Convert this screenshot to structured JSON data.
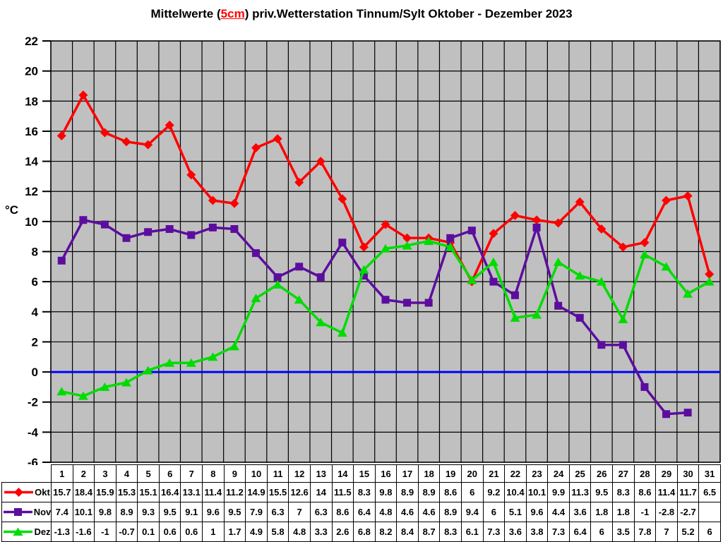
{
  "title": {
    "prefix": "Mittelwerte (",
    "highlight": "5cm",
    "suffix": ") priv.Wetterstation Tinnum/Sylt Oktober - Dezember 2023",
    "highlight_color": "#ff0000"
  },
  "y_axis": {
    "unit": "°C",
    "ticks": [
      22,
      20,
      18,
      16,
      14,
      12,
      10,
      8,
      6,
      4,
      2,
      0,
      -2,
      -4,
      -6
    ]
  },
  "colors": {
    "plot_bg": "#c0c0c0",
    "grid": "#000000",
    "axis": "#000000",
    "zero_line": "#0000ff",
    "okt": "#ff0000",
    "nov": "#5c0d9e",
    "dez": "#00dc00"
  },
  "chart_data": {
    "type": "line",
    "title": "Mittelwerte (5cm) priv.Wetterstation Tinnum/Sylt Oktober - Dezember 2023",
    "xlabel": "",
    "ylabel": "°C",
    "ylim": [
      -6,
      22
    ],
    "ystep": 2,
    "grid": true,
    "legend_position": "table-left",
    "x": [
      1,
      2,
      3,
      4,
      5,
      6,
      7,
      8,
      9,
      10,
      11,
      12,
      13,
      14,
      15,
      16,
      17,
      18,
      19,
      20,
      21,
      22,
      23,
      24,
      25,
      26,
      27,
      28,
      29,
      30,
      31
    ],
    "series": [
      {
        "name": "Okt",
        "marker": "diamond",
        "color": "#ff0000",
        "values": [
          15.7,
          18.4,
          15.9,
          15.3,
          15.1,
          16.4,
          13.1,
          11.4,
          11.2,
          14.9,
          15.5,
          12.6,
          14,
          11.5,
          8.3,
          9.8,
          8.9,
          8.9,
          8.6,
          6,
          9.2,
          10.4,
          10.1,
          9.9,
          11.3,
          9.5,
          8.3,
          8.6,
          11.4,
          11.7,
          6.5
        ]
      },
      {
        "name": "Nov",
        "marker": "square",
        "color": "#5c0d9e",
        "values": [
          7.4,
          10.1,
          9.8,
          8.9,
          9.3,
          9.5,
          9.1,
          9.6,
          9.5,
          7.9,
          6.3,
          7,
          6.3,
          8.6,
          6.4,
          4.8,
          4.6,
          4.6,
          8.9,
          9.4,
          6,
          5.1,
          9.6,
          4.4,
          3.6,
          1.8,
          1.8,
          -1,
          -2.8,
          -2.7,
          null
        ]
      },
      {
        "name": "Dez",
        "marker": "triangle",
        "color": "#00dc00",
        "values": [
          -1.3,
          -1.6,
          -1,
          -0.7,
          0.1,
          0.6,
          0.6,
          1,
          1.7,
          4.9,
          5.8,
          4.8,
          3.3,
          2.6,
          6.8,
          8.2,
          8.4,
          8.7,
          8.3,
          6.1,
          7.3,
          3.6,
          3.8,
          7.3,
          6.4,
          6,
          3.5,
          7.8,
          7,
          5.2,
          6
        ]
      }
    ]
  },
  "table": {
    "day_header": [
      "1",
      "2",
      "3",
      "4",
      "5",
      "6",
      "7",
      "8",
      "9",
      "10",
      "11",
      "12",
      "13",
      "14",
      "15",
      "16",
      "17",
      "18",
      "19",
      "20",
      "21",
      "22",
      "23",
      "24",
      "25",
      "26",
      "27",
      "28",
      "29",
      "30",
      "31"
    ],
    "rows": [
      {
        "label": "Okt",
        "marker": "diamond",
        "color": "#ff0000",
        "values": [
          "15.7",
          "18.4",
          "15.9",
          "15.3",
          "15.1",
          "16.4",
          "13.1",
          "11.4",
          "11.2",
          "14.9",
          "15.5",
          "12.6",
          "14",
          "11.5",
          "8.3",
          "9.8",
          "8.9",
          "8.9",
          "8.6",
          "6",
          "9.2",
          "10.4",
          "10.1",
          "9.9",
          "11.3",
          "9.5",
          "8.3",
          "8.6",
          "11.4",
          "11.7",
          "6.5"
        ]
      },
      {
        "label": "Nov",
        "marker": "square",
        "color": "#5c0d9e",
        "values": [
          "7.4",
          "10.1",
          "9.8",
          "8.9",
          "9.3",
          "9.5",
          "9.1",
          "9.6",
          "9.5",
          "7.9",
          "6.3",
          "7",
          "6.3",
          "8.6",
          "6.4",
          "4.8",
          "4.6",
          "4.6",
          "8.9",
          "9.4",
          "6",
          "5.1",
          "9.6",
          "4.4",
          "3.6",
          "1.8",
          "1.8",
          "-1",
          "-2.8",
          "-2.7",
          ""
        ]
      },
      {
        "label": "Dez",
        "marker": "triangle",
        "color": "#00dc00",
        "values": [
          "-1.3",
          "-1.6",
          "-1",
          "-0.7",
          "0.1",
          "0.6",
          "0.6",
          "1",
          "1.7",
          "4.9",
          "5.8",
          "4.8",
          "3.3",
          "2.6",
          "6.8",
          "8.2",
          "8.4",
          "8.7",
          "8.3",
          "6.1",
          "7.3",
          "3.6",
          "3.8",
          "7.3",
          "6.4",
          "6",
          "3.5",
          "7.8",
          "7",
          "5.2",
          "6"
        ]
      }
    ]
  }
}
